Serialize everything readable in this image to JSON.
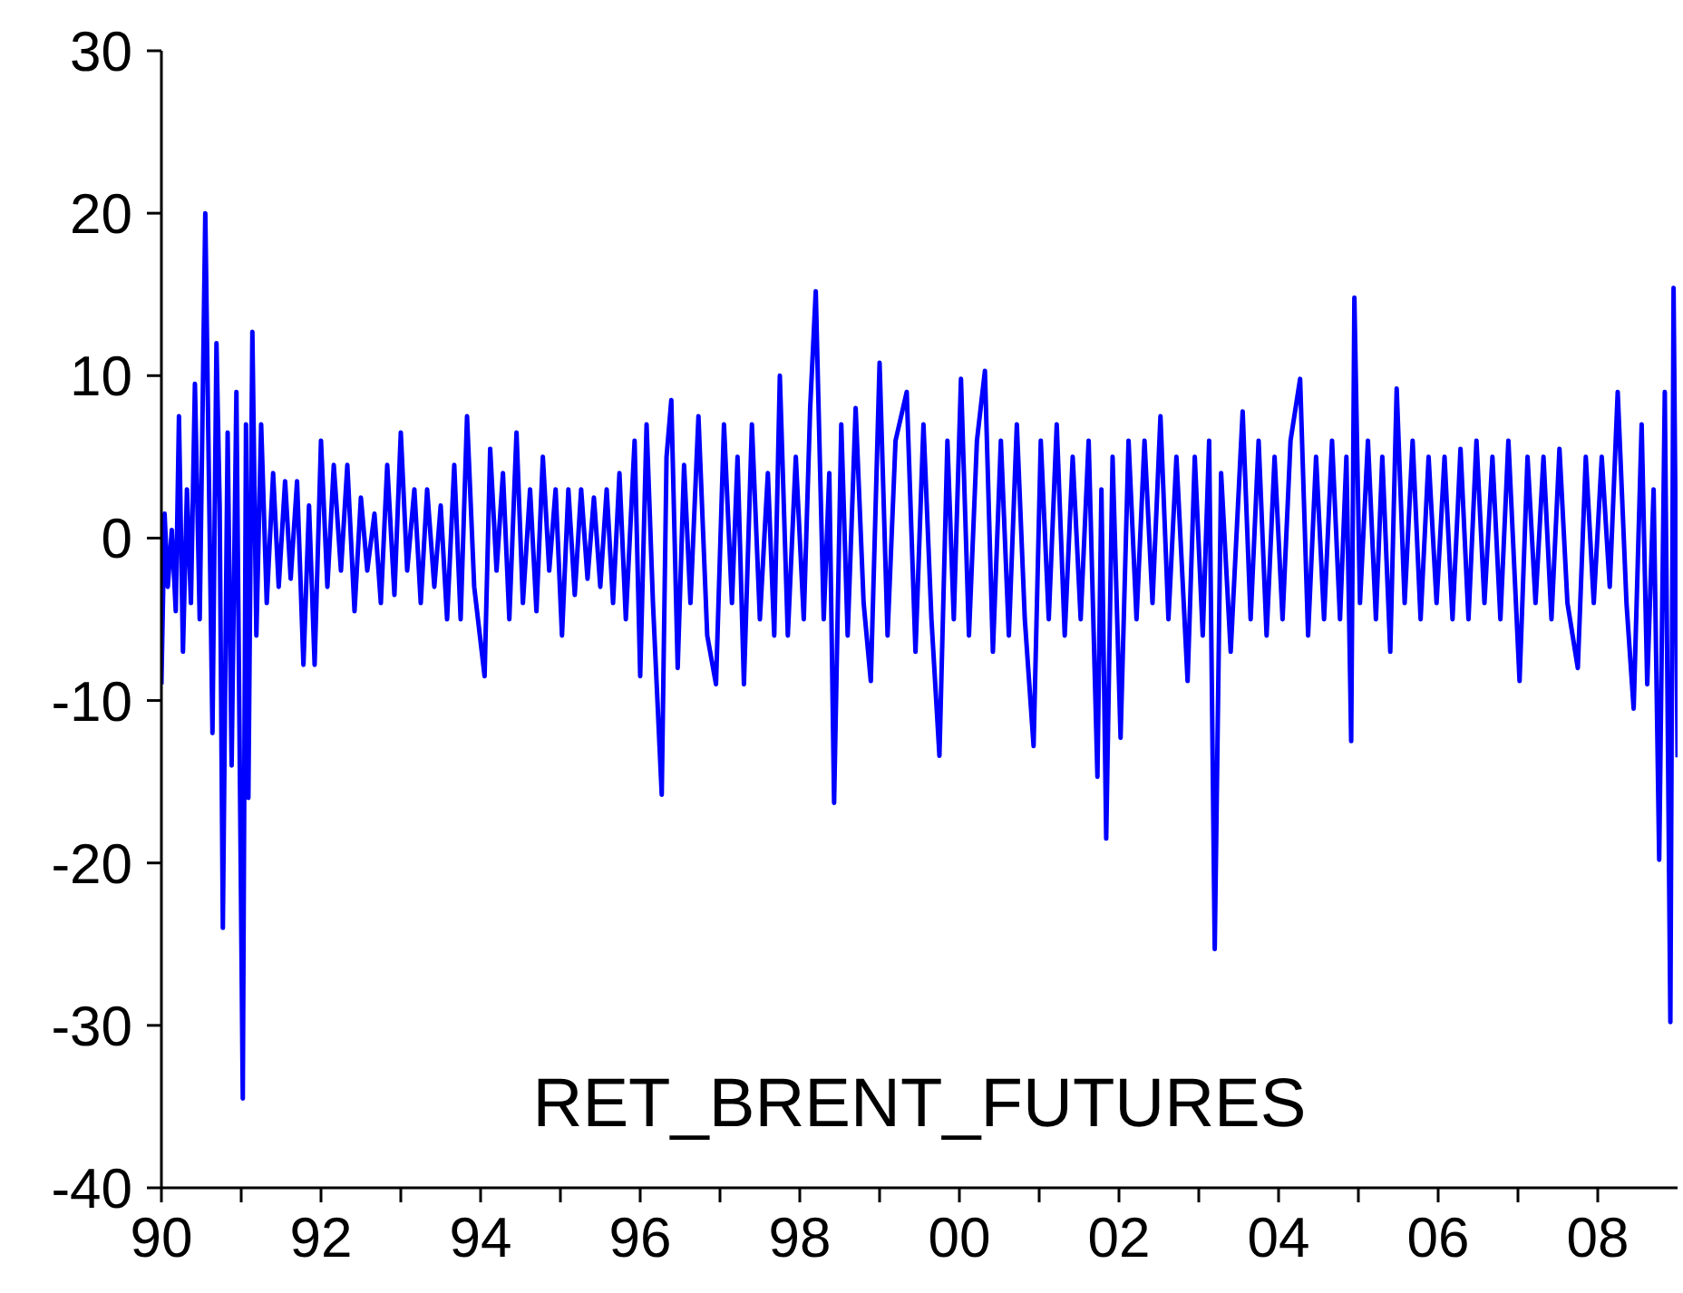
{
  "chart_data": {
    "type": "line",
    "title": "RET_BRENT_FUTURES",
    "xlim": [
      1990,
      2009
    ],
    "xticks": [
      {
        "value": 1990,
        "label": "90"
      },
      {
        "value": 1991,
        "label": null
      },
      {
        "value": 1992,
        "label": "92"
      },
      {
        "value": 1993,
        "label": null
      },
      {
        "value": 1994,
        "label": "94"
      },
      {
        "value": 1995,
        "label": null
      },
      {
        "value": 1996,
        "label": "96"
      },
      {
        "value": 1997,
        "label": null
      },
      {
        "value": 1998,
        "label": "98"
      },
      {
        "value": 1999,
        "label": null
      },
      {
        "value": 2000,
        "label": "00"
      },
      {
        "value": 2001,
        "label": null
      },
      {
        "value": 2002,
        "label": "02"
      },
      {
        "value": 2003,
        "label": null
      },
      {
        "value": 2004,
        "label": "04"
      },
      {
        "value": 2005,
        "label": null
      },
      {
        "value": 2006,
        "label": "06"
      },
      {
        "value": 2007,
        "label": null
      },
      {
        "value": 2008,
        "label": "08"
      }
    ],
    "ylim": [
      -40,
      30
    ],
    "yticks": [
      -40,
      -30,
      -20,
      -10,
      0,
      10,
      20,
      30
    ],
    "grid": false,
    "legend": false,
    "marker": "none",
    "line_style": "solid",
    "series": [
      {
        "color": "#0000ff",
        "x": [
          1990.0,
          1990.04,
          1990.08,
          1990.13,
          1990.18,
          1990.22,
          1990.27,
          1990.32,
          1990.37,
          1990.42,
          1990.48,
          1990.55,
          1990.6,
          1990.64,
          1990.69,
          1990.73,
          1990.77,
          1990.83,
          1990.88,
          1990.94,
          1991.02,
          1991.06,
          1991.09,
          1991.14,
          1991.19,
          1991.25,
          1991.32,
          1991.4,
          1991.47,
          1991.55,
          1991.62,
          1991.7,
          1991.78,
          1991.85,
          1991.92,
          1992.0,
          1992.08,
          1992.16,
          1992.25,
          1992.33,
          1992.42,
          1992.5,
          1992.58,
          1992.67,
          1992.75,
          1992.83,
          1992.92,
          1993.0,
          1993.08,
          1993.17,
          1993.25,
          1993.33,
          1993.42,
          1993.5,
          1993.58,
          1993.67,
          1993.75,
          1993.83,
          1993.92,
          1994.05,
          1994.12,
          1994.2,
          1994.28,
          1994.36,
          1994.45,
          1994.53,
          1994.62,
          1994.7,
          1994.78,
          1994.86,
          1994.94,
          1995.02,
          1995.1,
          1995.18,
          1995.26,
          1995.34,
          1995.42,
          1995.5,
          1995.58,
          1995.66,
          1995.74,
          1995.82,
          1995.93,
          1996.0,
          1996.08,
          1996.16,
          1996.27,
          1996.33,
          1996.39,
          1996.47,
          1996.55,
          1996.63,
          1996.73,
          1996.84,
          1996.95,
          1997.05,
          1997.15,
          1997.22,
          1997.3,
          1997.4,
          1997.5,
          1997.6,
          1997.68,
          1997.75,
          1997.85,
          1997.95,
          1998.05,
          1998.13,
          1998.2,
          1998.3,
          1998.37,
          1998.43,
          1998.52,
          1998.6,
          1998.7,
          1998.8,
          1998.89,
          1999.0,
          1999.1,
          1999.2,
          1999.34,
          1999.45,
          1999.55,
          1999.65,
          1999.75,
          1999.85,
          1999.93,
          2000.02,
          2000.12,
          2000.22,
          2000.32,
          2000.42,
          2000.52,
          2000.62,
          2000.72,
          2000.82,
          2000.93,
          2001.02,
          2001.12,
          2001.22,
          2001.32,
          2001.42,
          2001.52,
          2001.62,
          2001.73,
          2001.78,
          2001.84,
          2001.92,
          2002.02,
          2002.12,
          2002.22,
          2002.32,
          2002.42,
          2002.52,
          2002.62,
          2002.72,
          2002.86,
          2002.95,
          2003.05,
          2003.13,
          2003.2,
          2003.28,
          2003.4,
          2003.55,
          2003.65,
          2003.75,
          2003.85,
          2003.95,
          2004.05,
          2004.15,
          2004.27,
          2004.37,
          2004.47,
          2004.57,
          2004.67,
          2004.77,
          2004.85,
          2004.91,
          2004.95,
          2005.02,
          2005.12,
          2005.22,
          2005.3,
          2005.4,
          2005.48,
          2005.58,
          2005.68,
          2005.78,
          2005.88,
          2005.98,
          2006.08,
          2006.18,
          2006.28,
          2006.38,
          2006.48,
          2006.58,
          2006.68,
          2006.78,
          2006.88,
          2007.02,
          2007.12,
          2007.22,
          2007.32,
          2007.42,
          2007.52,
          2007.62,
          2007.75,
          2007.85,
          2007.95,
          2008.05,
          2008.15,
          2008.25,
          2008.36,
          2008.45,
          2008.55,
          2008.62,
          2008.7,
          2008.77,
          2008.84,
          2008.88,
          2008.91,
          2008.95,
          2009.0
        ],
        "values": [
          -9,
          1.5,
          -3,
          0.5,
          -4.5,
          7.5,
          -7,
          3,
          -4,
          9.5,
          -5,
          20,
          2,
          -12,
          12,
          2,
          -24,
          6.5,
          -14,
          9,
          -34.5,
          7,
          -16,
          12.7,
          -6,
          7,
          -4,
          4,
          -3,
          3.5,
          -2.5,
          3.5,
          -7.8,
          2,
          -7.8,
          6,
          -3,
          4.5,
          -2,
          4.5,
          -4.5,
          2.5,
          -2,
          1.5,
          -4,
          4.5,
          -3.5,
          6.5,
          -2,
          3,
          -4,
          3,
          -3,
          2,
          -5,
          4.5,
          -5,
          7.5,
          -3,
          -8.5,
          5.5,
          -2,
          4,
          -5,
          6.5,
          -4,
          3,
          -4.5,
          5,
          -2,
          3,
          -6,
          3,
          -3.5,
          3,
          -2.5,
          2.5,
          -3,
          3,
          -4,
          4,
          -5,
          6,
          -8.5,
          7,
          -4,
          -15.8,
          5,
          8.5,
          -8,
          4.5,
          -4,
          7.5,
          -6,
          -9,
          7,
          -4,
          5,
          -9,
          7,
          -5,
          4,
          -6,
          10,
          -6,
          5,
          -5,
          8,
          15.2,
          -5,
          4,
          -16.3,
          7,
          -6,
          8,
          -4,
          -8.8,
          10.8,
          -6,
          6,
          9,
          -7,
          7,
          -5,
          -13.4,
          6,
          -5,
          9.8,
          -6,
          6,
          10.3,
          -7,
          6,
          -6,
          7,
          -5,
          -12.8,
          6,
          -5,
          7,
          -6,
          5,
          -5,
          6,
          -14.7,
          3,
          -18.5,
          5,
          -12.3,
          6,
          -5,
          6,
          -4,
          7.5,
          -5,
          5,
          -8.8,
          5,
          -6,
          6,
          -25.3,
          4,
          -7,
          7.8,
          -5,
          6,
          -6,
          5,
          -5,
          6,
          9.8,
          -6,
          5,
          -5,
          6,
          -5,
          5,
          -12.5,
          14.8,
          -4,
          6,
          -5,
          5,
          -7,
          9.2,
          -4,
          6,
          -5,
          5,
          -4,
          5,
          -5,
          5.5,
          -5,
          6,
          -4,
          5,
          -5,
          6,
          -8.8,
          5,
          -4,
          5,
          -5,
          5.5,
          -4,
          -8,
          5,
          -4,
          5,
          -3,
          9,
          -4,
          -10.5,
          7,
          -9,
          3,
          -19.8,
          9,
          -13,
          -29.8,
          15.4,
          -13.5
        ]
      }
    ]
  }
}
